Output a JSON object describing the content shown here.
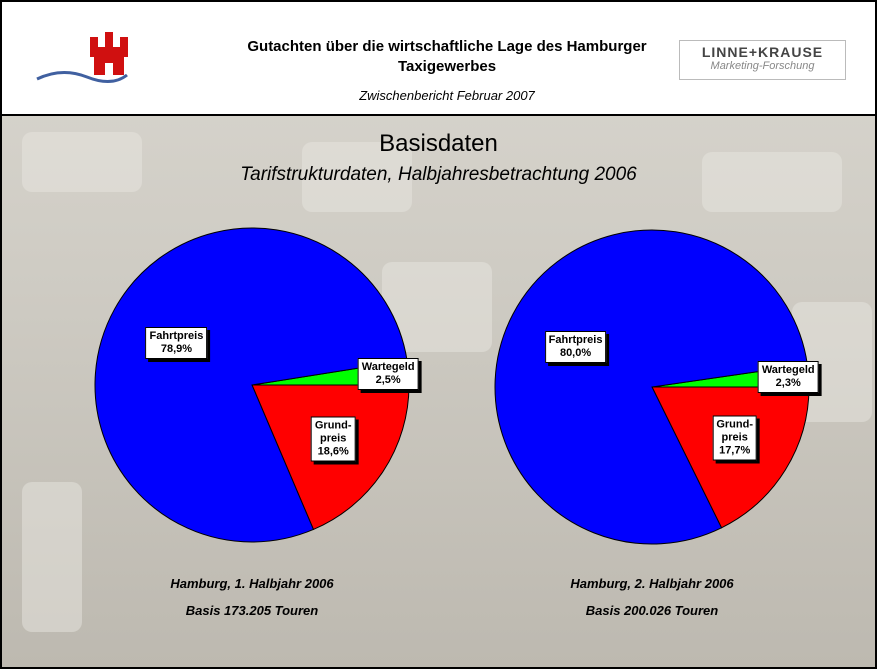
{
  "header": {
    "title": "Gutachten über die wirtschaftliche Lage des Hamburger Taxigewerbes",
    "subtitle": "Zwischenbericht Februar 2007",
    "logo_name": "LINNE+KRAUSE",
    "logo_tagline": "Marketing-Forschung"
  },
  "slide": {
    "title": "Basisdaten",
    "subtitle": "Tarifstrukturdaten, Halbjahresbetrachtung 2006"
  },
  "chart_data": [
    {
      "type": "pie",
      "title": "Hamburg, 1. Halbjahr 2006",
      "subtitle": "Basis 173.205 Touren",
      "categories": [
        "Wartegeld",
        "Grund-\npreis",
        "Fahrtpreis"
      ],
      "values": [
        2.5,
        18.6,
        78.9
      ],
      "value_labels": [
        "2,5%",
        "18,6%",
        "78,9%"
      ],
      "colors": [
        "#00ff00",
        "#ff0000",
        "#0000ff"
      ]
    },
    {
      "type": "pie",
      "title": "Hamburg, 2. Halbjahr 2006",
      "subtitle": "Basis 200.026 Touren",
      "categories": [
        "Wartegeld",
        "Grund-\npreis",
        "Fahrtpreis"
      ],
      "values": [
        2.3,
        17.7,
        80.0
      ],
      "value_labels": [
        "2,3%",
        "17,7%",
        "80,0%"
      ],
      "colors": [
        "#00ff00",
        "#ff0000",
        "#0000ff"
      ]
    }
  ]
}
